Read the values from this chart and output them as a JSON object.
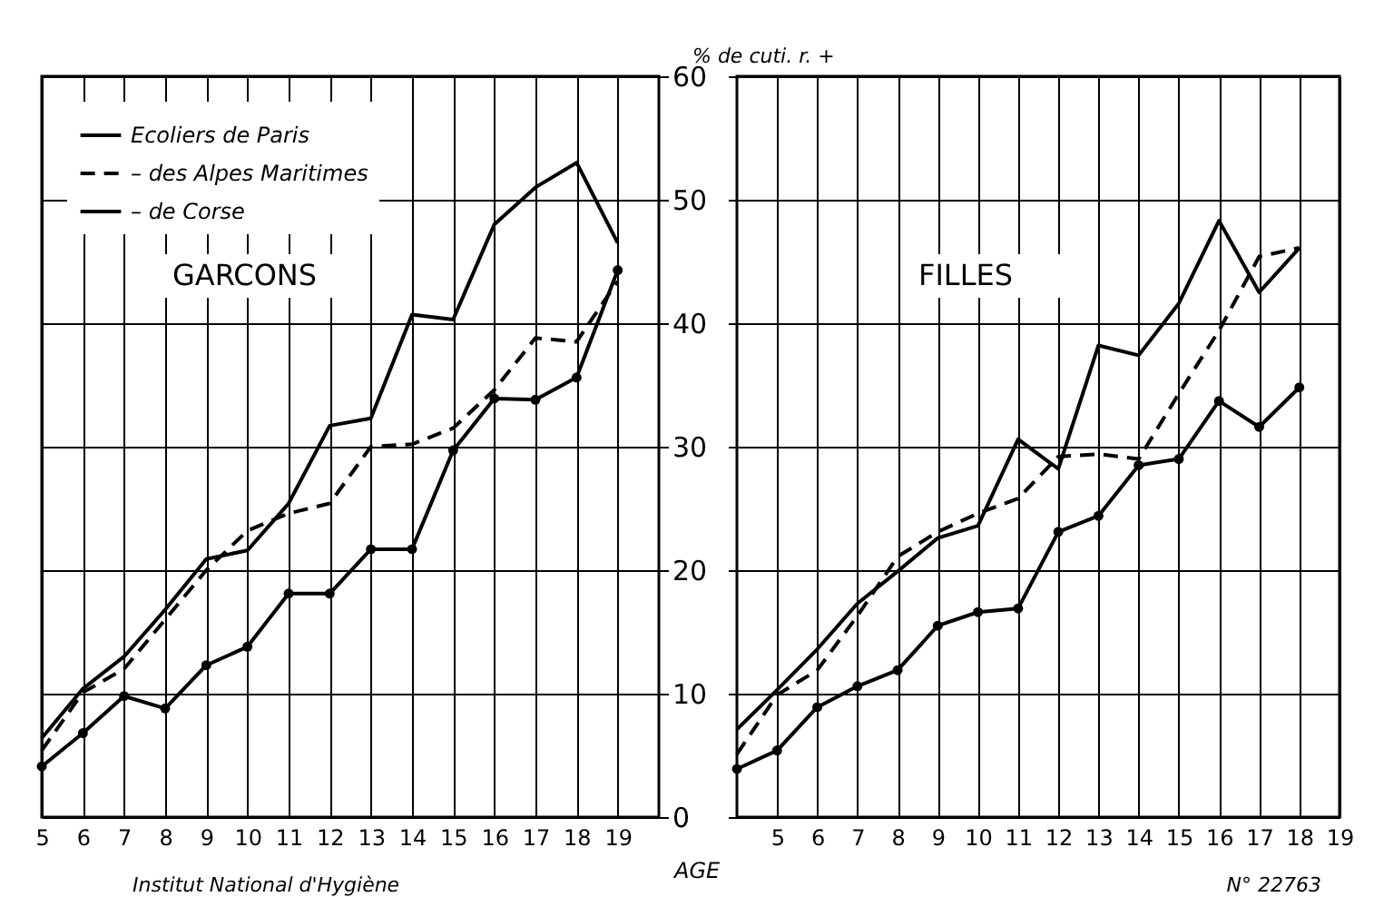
{
  "chart_data": [
    {
      "type": "line",
      "title": "GARCONS",
      "xlabel": "AGE",
      "ylabel": "% de cuti. r. +",
      "x": [
        5,
        6,
        7,
        8,
        9,
        10,
        11,
        12,
        13,
        14,
        15,
        16,
        17,
        18,
        19
      ],
      "xlim": [
        5,
        20
      ],
      "xticks": [
        5,
        6,
        7,
        8,
        9,
        10,
        11,
        12,
        13,
        14,
        15,
        16,
        17,
        18,
        19
      ],
      "ylim": [
        0,
        60
      ],
      "yticks": [
        0,
        10,
        20,
        30,
        40,
        50,
        60
      ],
      "grid": true,
      "legend": "top left",
      "annotations": [
        "Institut National d'Hygiène"
      ],
      "series": [
        {
          "name": "Ecoliers de Paris",
          "color": "#000000",
          "line_style": "solid",
          "marker": "none",
          "values": [
            6.4,
            10.4,
            13.0,
            16.8,
            20.9,
            21.6,
            25.4,
            31.7,
            32.3,
            40.7,
            40.3,
            48.0,
            51.0,
            53.0,
            46.5
          ]
        },
        {
          "name": "– des Alpes Maritimes",
          "color": "#000000",
          "line_style": "dashed",
          "marker": "none",
          "values": [
            5.4,
            10.1,
            12.0,
            16.0,
            20.0,
            23.2,
            24.6,
            25.4,
            30.0,
            30.2,
            31.5,
            34.6,
            38.8,
            38.5,
            43.4
          ]
        },
        {
          "name": "– de Corse",
          "color": "#000000",
          "line_style": "solid",
          "marker": "circle",
          "values": [
            4.1,
            6.8,
            9.8,
            8.8,
            12.3,
            13.8,
            18.1,
            18.1,
            21.7,
            21.7,
            29.7,
            33.9,
            33.8,
            35.6,
            44.3
          ]
        }
      ]
    },
    {
      "type": "line",
      "title": "FILLES",
      "x": [
        4,
        5,
        6,
        7,
        8,
        9,
        10,
        11,
        12,
        13,
        14,
        15,
        16,
        17,
        18
      ],
      "xlim": [
        4,
        19
      ],
      "xticks": [
        5,
        6,
        7,
        8,
        9,
        10,
        11,
        12,
        13,
        14,
        15,
        16,
        17,
        18,
        19
      ],
      "ylim": [
        0,
        60
      ],
      "yticks": [
        0,
        10,
        20,
        30,
        40,
        50,
        60
      ],
      "grid": true,
      "tick_labels": "x",
      "annotations": [
        "N° 22763"
      ],
      "series": [
        {
          "color": "#000000",
          "line_style": "solid",
          "marker": "none",
          "values": [
            7.1,
            10.3,
            13.6,
            17.3,
            19.9,
            22.6,
            23.6,
            30.6,
            28.2,
            38.2,
            37.4,
            41.6,
            48.3,
            42.5,
            46.1
          ]
        },
        {
          "color": "#000000",
          "line_style": "dashed",
          "marker": "none",
          "values": [
            5.1,
            9.9,
            11.9,
            16.3,
            21.1,
            23.1,
            24.6,
            25.8,
            29.2,
            29.4,
            29.0,
            34.3,
            39.4,
            45.4,
            46.1
          ]
        },
        {
          "color": "#000000",
          "line_style": "solid",
          "marker": "circle",
          "values": [
            3.9,
            5.4,
            8.9,
            10.6,
            11.9,
            15.5,
            16.6,
            16.9,
            23.1,
            24.4,
            28.5,
            29.0,
            33.7,
            31.6,
            34.8
          ]
        }
      ]
    }
  ]
}
